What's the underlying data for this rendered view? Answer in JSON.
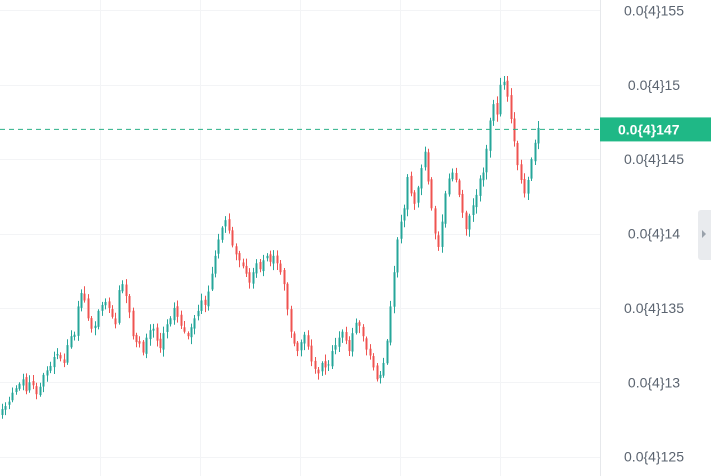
{
  "chart_data": {
    "type": "candlestick",
    "y_axis": {
      "position": "right",
      "ticks": [
        {
          "value": 1.55e-05,
          "label": "0.0{4}155"
        },
        {
          "value": 1.5e-05,
          "label": "0.0{4}15"
        },
        {
          "value": 1.45e-05,
          "label": "0.0{4}145"
        },
        {
          "value": 1.4e-05,
          "label": "0.0{4}14"
        },
        {
          "value": 1.35e-05,
          "label": "0.0{4}135"
        },
        {
          "value": 1.3e-05,
          "label": "0.0{4}13"
        },
        {
          "value": 1.25e-05,
          "label": "0.0{4}125"
        }
      ],
      "range": [
        1.237e-05,
        1.557e-05
      ]
    },
    "current_price": {
      "value": 1.47e-05,
      "label": "0.0{4}147"
    },
    "grid": true,
    "colors": {
      "up": "#26a69a",
      "down": "#ef5350",
      "price_line": "#2bb087",
      "price_tag": "#1fb886",
      "grid": "#f3f4f6",
      "tick_text": "#5b6470"
    },
    "close_trace": [
      12.82,
      12.84,
      12.87,
      12.93,
      12.96,
      12.99,
      13.02,
      12.94,
      13.0,
      12.98,
      12.92,
      12.97,
      13.05,
      13.08,
      13.11,
      13.17,
      13.19,
      13.16,
      13.13,
      13.25,
      13.31,
      13.32,
      13.51,
      13.6,
      13.55,
      13.43,
      13.36,
      13.38,
      13.48,
      13.52,
      13.54,
      13.5,
      13.44,
      13.39,
      13.62,
      13.66,
      13.58,
      13.47,
      13.31,
      13.27,
      13.26,
      13.2,
      13.3,
      13.35,
      13.36,
      13.28,
      13.23,
      13.33,
      13.39,
      13.43,
      13.5,
      13.44,
      13.38,
      13.34,
      13.31,
      13.37,
      13.43,
      13.48,
      13.55,
      13.52,
      13.61,
      13.73,
      13.85,
      13.96,
      14.04,
      14.09,
      14.02,
      13.92,
      13.86,
      13.82,
      13.78,
      13.73,
      13.67,
      13.74,
      13.8,
      13.76,
      13.82,
      13.85,
      13.81,
      13.85,
      13.8,
      13.74,
      13.66,
      13.49,
      13.34,
      13.26,
      13.21,
      13.27,
      13.32,
      13.24,
      13.14,
      13.09,
      13.06,
      13.13,
      13.1,
      13.12,
      13.21,
      13.25,
      13.3,
      13.34,
      13.28,
      13.21,
      13.33,
      13.4,
      13.38,
      13.31,
      13.22,
      13.18,
      13.1,
      13.02,
      13.05,
      13.13,
      13.28,
      13.51,
      13.74,
      13.96,
      14.08,
      14.17,
      14.38,
      14.27,
      14.2,
      14.31,
      14.44,
      14.55,
      14.35,
      14.17,
      14.0,
      13.91,
      14.08,
      14.27,
      14.37,
      14.41,
      14.36,
      14.26,
      14.14,
      14.03,
      14.12,
      14.19,
      14.26,
      14.37,
      14.41,
      14.57,
      14.76,
      14.87,
      14.8,
      15.0,
      15.02,
      14.92,
      14.77,
      14.62,
      14.46,
      14.36,
      14.27,
      14.36,
      14.5,
      14.61,
      14.71
    ]
  }
}
